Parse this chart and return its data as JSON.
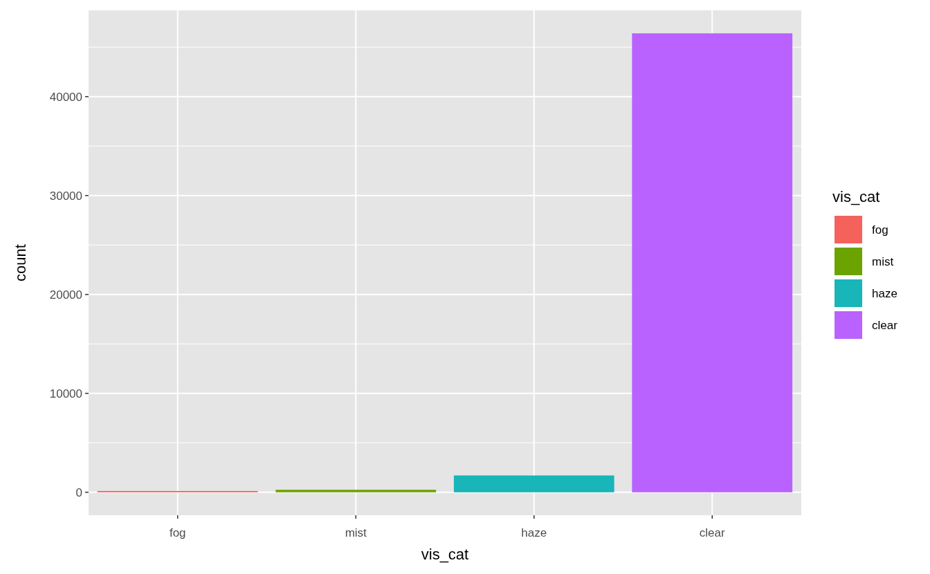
{
  "chart_data": {
    "type": "bar",
    "xlabel": "vis_cat",
    "ylabel": "count",
    "legend_title": "vis_cat",
    "categories": [
      "fog",
      "mist",
      "haze",
      "clear"
    ],
    "series": [
      {
        "name": "fog",
        "color": "#f5625c",
        "values": [
          130,
          null,
          null,
          null
        ]
      },
      {
        "name": "mist",
        "color": "#6ba300",
        "values": [
          null,
          250,
          null,
          null
        ]
      },
      {
        "name": "haze",
        "color": "#18b5b9",
        "values": [
          null,
          null,
          1700,
          null
        ]
      },
      {
        "name": "clear",
        "color": "#b962ff",
        "values": [
          null,
          null,
          null,
          46400
        ]
      }
    ],
    "ylim": [
      -2320,
      48720
    ],
    "yticks": [
      0,
      {
        "value": 5000,
        "label": null
      },
      10000,
      {
        "value": 15000,
        "label": null
      },
      20000,
      {
        "value": 25000,
        "label": null
      },
      30000,
      {
        "value": 35000,
        "label": null
      },
      40000,
      {
        "value": 45000,
        "label": null
      }
    ],
    "grid": true,
    "legend": "right"
  }
}
